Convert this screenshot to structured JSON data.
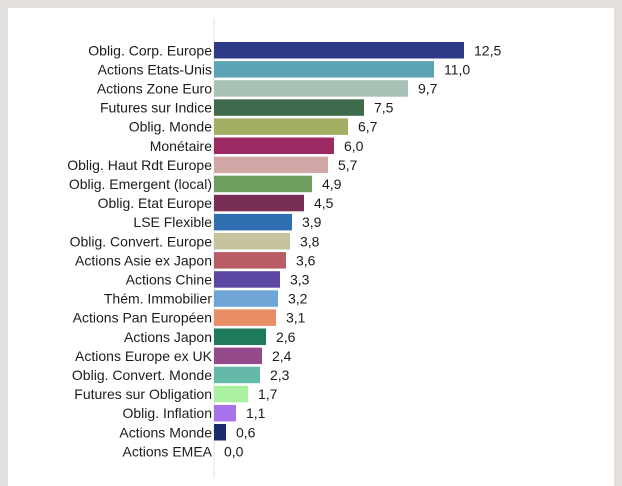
{
  "chart_data": {
    "type": "bar",
    "orientation": "horizontal",
    "categories": [
      "Oblig. Corp. Europe",
      "Actions Etats-Unis",
      "Actions Zone Euro",
      "Futures sur Indice",
      "Oblig. Monde",
      "Monétaire",
      "Oblig. Haut Rdt Europe",
      "Oblig. Emergent (local)",
      "Oblig. Etat Europe",
      "LSE Flexible",
      "Oblig. Convert. Europe",
      "Actions Asie ex Japon",
      "Actions Chine",
      "Thém. Immobilier",
      "Actions Pan Européen",
      "Actions Japon",
      "Actions Europe ex UK",
      "Oblig. Convert. Monde",
      "Futures sur Obligation",
      "Oblig. Inflation",
      "Actions Monde",
      "Actions EMEA"
    ],
    "values": [
      12.5,
      11.0,
      9.7,
      7.5,
      6.7,
      6.0,
      5.7,
      4.9,
      4.5,
      3.9,
      3.8,
      3.6,
      3.3,
      3.2,
      3.1,
      2.6,
      2.4,
      2.3,
      1.7,
      1.1,
      0.6,
      0.0
    ],
    "value_labels": [
      "12,5",
      "11,0",
      "9,7",
      "7,5",
      "6,7",
      "6,0",
      "5,7",
      "4,9",
      "4,5",
      "3,9",
      "3,8",
      "3,6",
      "3,3",
      "3,2",
      "3,1",
      "2,6",
      "2,4",
      "2,3",
      "1,7",
      "1,1",
      "0,6",
      "0,0"
    ],
    "colors": [
      "#2e3a87",
      "#5ba3b5",
      "#a7c2b4",
      "#3e6b4b",
      "#a3ae62",
      "#9c2a63",
      "#d2a8a6",
      "#6d9e5f",
      "#782d55",
      "#2f6faf",
      "#c6c29c",
      "#b85c66",
      "#5c46a3",
      "#6ea5d6",
      "#e88d66",
      "#1f7a59",
      "#954a8c",
      "#64b9a8",
      "#a9f0a0",
      "#a873ea",
      "#1a2b6e",
      "#3a3a3a"
    ],
    "title": "",
    "xlabel": "",
    "ylabel": "",
    "xlim": [
      0,
      12.5
    ],
    "grid": false,
    "legend": "none"
  }
}
